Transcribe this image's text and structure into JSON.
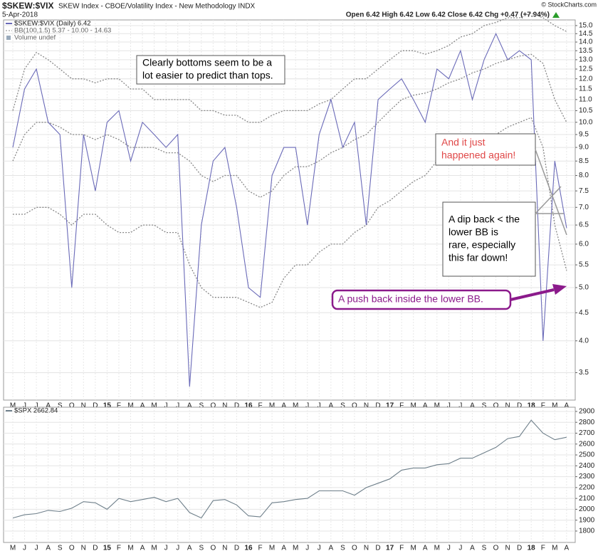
{
  "header": {
    "symbol": "$SKEW:$VIX",
    "description": "SKEW Index - CBOE/Volatility Index - New Methodology  INDX",
    "date": "5-Apr-2018",
    "quote": "Open 6.42  High 6.42  Low 6.42  Close 6.42  Chg +0.47 (+7.94%)",
    "copyright": "© StockCharts.com"
  },
  "chart_data": [
    {
      "type": "line",
      "log_scale": true,
      "grid": true,
      "categories": [
        "M",
        "J",
        "J",
        "A",
        "S",
        "O",
        "N",
        "D",
        "15",
        "F",
        "M",
        "A",
        "M",
        "J",
        "J",
        "A",
        "S",
        "O",
        "N",
        "D",
        "16",
        "F",
        "M",
        "A",
        "M",
        "J",
        "J",
        "A",
        "S",
        "O",
        "N",
        "D",
        "17",
        "F",
        "M",
        "A",
        "M",
        "J",
        "J",
        "A",
        "S",
        "O",
        "N",
        "D",
        "18",
        "F",
        "M",
        "A"
      ],
      "ylim": [
        3.12,
        15.36
      ],
      "yticks": [
        3.5,
        {
          "value": 4,
          "label": "4.0"
        },
        4.5,
        {
          "value": 5,
          "label": "5.0"
        },
        5.5,
        {
          "value": 6,
          "label": "6.0"
        },
        6.5,
        {
          "value": 7,
          "label": "7.0"
        },
        7.5,
        {
          "value": 8,
          "label": "8.0"
        },
        8.5,
        {
          "value": 9,
          "label": "9.0"
        },
        9.5,
        {
          "value": 10,
          "label": "10.0"
        },
        10.5,
        {
          "value": 11,
          "label": "11.0"
        },
        11.5,
        {
          "value": 12,
          "label": "12.0"
        },
        12.5,
        {
          "value": 13,
          "label": "13.0"
        },
        13.5,
        {
          "value": 14,
          "label": "14.0"
        },
        14.5,
        {
          "value": 15,
          "label": "15.0"
        }
      ],
      "series": [
        {
          "name": "$SKEW:$VIX (Daily) 6.42",
          "color": "#6a6ab8",
          "values": [
            9,
            11.5,
            12.5,
            10,
            9.5,
            5,
            9.5,
            7.5,
            10,
            10.5,
            8.5,
            10,
            9.5,
            9,
            9.5,
            3.3,
            6.5,
            8.5,
            9,
            7,
            5,
            4.8,
            8,
            9,
            9,
            6.5,
            9.5,
            11,
            9,
            10,
            6.5,
            11,
            11.5,
            12,
            11,
            10,
            12.5,
            12,
            13.5,
            11,
            13,
            14.5,
            13,
            13.5,
            13,
            4,
            8.5,
            6.42
          ]
        }
      ],
      "bands": {
        "name": "BB(100,1.5) 5.37 - 10.00 - 14.63",
        "color": "#888888",
        "upper": [
          10.5,
          12.5,
          13.4,
          13,
          12.5,
          12,
          12,
          11.8,
          12,
          12,
          11.5,
          11.5,
          11,
          11,
          11,
          11,
          10.5,
          10.5,
          10.3,
          10.3,
          10,
          10,
          10.3,
          10.5,
          10.5,
          10.5,
          10.8,
          11,
          11.5,
          12,
          12,
          12.5,
          13,
          13.5,
          13.5,
          13.3,
          13.5,
          13.8,
          14.3,
          14.5,
          15,
          15.2,
          15.5,
          15.5,
          15.8,
          15.5,
          15,
          14.63
        ],
        "middle": [
          8.5,
          9.5,
          10,
          10,
          9.8,
          9.5,
          9.5,
          9.3,
          9.5,
          9.3,
          9,
          9,
          9,
          8.8,
          8.8,
          8.5,
          8,
          7.8,
          8,
          8,
          7.5,
          7.3,
          7.5,
          8,
          8.3,
          8.3,
          8.5,
          8.8,
          9,
          9.3,
          9.5,
          10,
          10.5,
          11,
          11.2,
          11.3,
          11.5,
          11.8,
          12,
          12.3,
          12.5,
          12.8,
          13,
          13.2,
          13.3,
          12.8,
          11,
          10
        ],
        "lower": [
          6.8,
          6.8,
          7,
          7,
          6.8,
          6.5,
          6.8,
          6.8,
          6.5,
          6.3,
          6.3,
          6.5,
          6.5,
          6.3,
          6.3,
          5.5,
          5,
          4.8,
          4.8,
          4.8,
          4.7,
          4.6,
          4.7,
          5.2,
          5.5,
          5.5,
          5.8,
          6,
          6,
          6.3,
          6.5,
          7,
          7.2,
          7.5,
          7.8,
          8,
          8.5,
          8.8,
          9,
          9,
          9.2,
          9.5,
          9.8,
          10,
          10.2,
          9,
          6.5,
          5.37
        ]
      },
      "legend_extra": "Volume undef",
      "annotations": [
        {
          "lines": [
            "Clearly bottoms seem to be a",
            "lot easier to predict than tops."
          ],
          "color": "#000000"
        },
        {
          "lines": [
            "And it just",
            "happened again!"
          ],
          "color": "#e04848"
        },
        {
          "lines": [
            "A dip back < the",
            "lower BB is",
            "rare, especially",
            "this far down!"
          ],
          "color": "#000000"
        },
        {
          "lines": [
            "A push back inside the lower BB."
          ],
          "color": "#8b1a8b"
        }
      ]
    },
    {
      "type": "line",
      "log_scale": false,
      "grid": true,
      "categories": [
        "M",
        "J",
        "J",
        "A",
        "S",
        "O",
        "N",
        "D",
        "15",
        "F",
        "M",
        "A",
        "M",
        "J",
        "J",
        "A",
        "S",
        "O",
        "N",
        "D",
        "16",
        "F",
        "M",
        "A",
        "M",
        "J",
        "J",
        "A",
        "S",
        "O",
        "N",
        "D",
        "17",
        "F",
        "M",
        "A",
        "M",
        "J",
        "J",
        "A",
        "S",
        "O",
        "N",
        "D",
        "18",
        "F",
        "M",
        "A"
      ],
      "ylim": [
        1695,
        2939
      ],
      "yticks": [
        1800,
        1900,
        2000,
        2100,
        2200,
        2300,
        2400,
        2500,
        2600,
        2700,
        2800,
        2900
      ],
      "series": [
        {
          "name": "$SPX 2662.84",
          "color": "#6e7f8a",
          "values": [
            1920,
            1950,
            1960,
            1990,
            1980,
            2010,
            2070,
            2060,
            2000,
            2100,
            2070,
            2090,
            2110,
            2070,
            2100,
            1970,
            1920,
            2080,
            2090,
            2040,
            1940,
            1930,
            2060,
            2070,
            2090,
            2100,
            2170,
            2170,
            2170,
            2130,
            2200,
            2240,
            2280,
            2360,
            2380,
            2380,
            2410,
            2420,
            2470,
            2470,
            2520,
            2570,
            2650,
            2670,
            2820,
            2700,
            2640,
            2662.84
          ]
        }
      ]
    }
  ]
}
